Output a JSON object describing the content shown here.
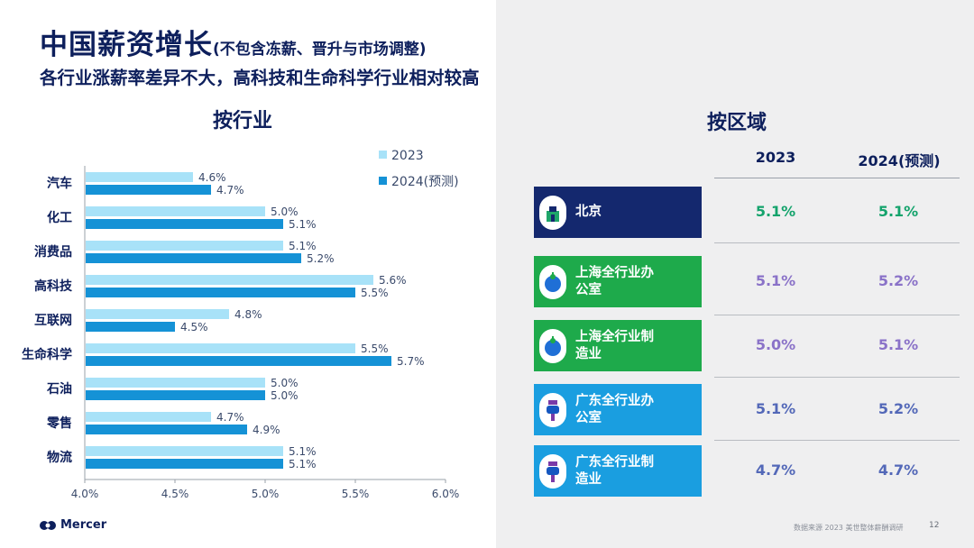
{
  "title": {
    "main": "中国薪资增长",
    "sub": "(不包含冻薪、晋升与市场调整)"
  },
  "subtitle": "各行业涨薪率差异不大，高科技和生命科学行业相对较高",
  "industry_section_title": "按行业",
  "region_section_title": "按区域",
  "chart_data": {
    "type": "bar",
    "orientation": "horizontal",
    "title": "按行业",
    "categories": [
      "汽车",
      "化工",
      "消费品",
      "高科技",
      "互联网",
      "生命科学",
      "石油",
      "零售",
      "物流"
    ],
    "series": [
      {
        "name": "2023",
        "color": "#a8e2f8",
        "values": [
          4.6,
          5.0,
          5.1,
          5.6,
          4.8,
          5.5,
          5.0,
          4.7,
          5.1
        ],
        "labels": [
          "4.6%",
          "5.0%",
          "5.1%",
          "5.6%",
          "4.8%",
          "5.5%",
          "5.0%",
          "4.7%",
          "5.1%"
        ]
      },
      {
        "name": "2024(预测)",
        "color": "#1592d6",
        "values": [
          4.7,
          5.1,
          5.2,
          5.5,
          4.5,
          5.7,
          5.0,
          4.9,
          5.1
        ],
        "labels": [
          "4.7%",
          "5.1%",
          "5.2%",
          "5.5%",
          "4.5%",
          "5.7%",
          "5.0%",
          "4.9%",
          "5.1%"
        ]
      }
    ],
    "xlim": [
      4.0,
      6.0
    ],
    "xticks": [
      4.0,
      4.5,
      5.0,
      5.5,
      6.0
    ],
    "xtick_labels": [
      "4.0%",
      "4.5%",
      "5.0%",
      "5.5%",
      "6.0%"
    ],
    "legend": "top-right"
  },
  "region_table": {
    "columns": [
      "2023",
      "2024(预测)"
    ],
    "rows": [
      {
        "label": "北京",
        "icon": "beijing-landmark-icon",
        "color": "#14286e",
        "v2023": "5.1%",
        "v2024": "5.1%",
        "c2023": "#14a36c",
        "c2024": "#14a36c"
      },
      {
        "label": "上海全行业办公室",
        "icon": "shanghai-tower-icon",
        "color": "#1eaa4b",
        "v2023": "5.1%",
        "v2024": "5.2%",
        "c2023": "#8a72c8",
        "c2024": "#8a72c8"
      },
      {
        "label": "上海全行业制造业",
        "icon": "shanghai-tower-icon",
        "color": "#1eaa4b",
        "v2023": "5.0%",
        "v2024": "5.1%",
        "c2023": "#8a72c8",
        "c2024": "#8a72c8"
      },
      {
        "label": "广东全行业办公室",
        "icon": "canton-tower-icon",
        "color": "#1a9ee0",
        "v2023": "5.1%",
        "v2024": "5.2%",
        "c2023": "#5368b8",
        "c2024": "#5368b8"
      },
      {
        "label": "广东全行业制造业",
        "icon": "canton-tower-icon",
        "color": "#1a9ee0",
        "v2023": "4.7%",
        "v2024": "4.7%",
        "c2023": "#5368b8",
        "c2024": "#5368b8"
      }
    ]
  },
  "footer": {
    "brand": "Mercer",
    "source": "数据来源 2023 美世整体薪酬调研",
    "page": "12"
  }
}
